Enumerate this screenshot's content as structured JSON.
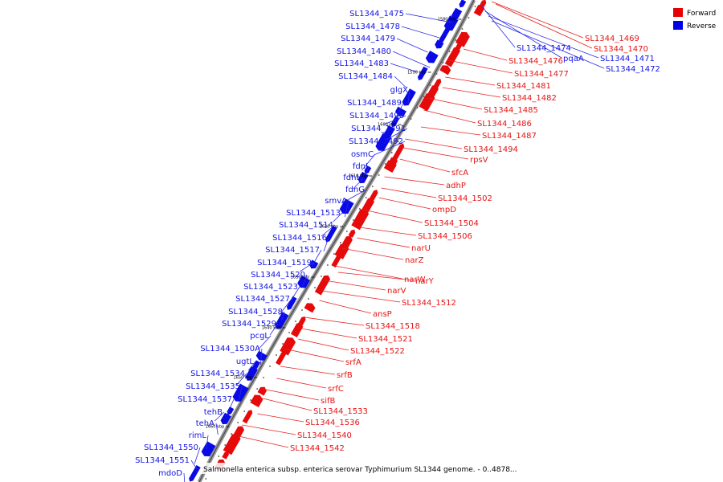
{
  "caption": "Salmonella enterica subsp. enterica serovar Typhimurium SL1344 genome. - 0..4878...",
  "legend": [
    {
      "label": "Forward",
      "color": "#e60000"
    },
    {
      "label": "Reverse",
      "color": "#0000e6"
    }
  ],
  "tick_labels": [
    "1580 kbp",
    "1590 kbp",
    "1600 kbp",
    "1610 kbp",
    "1620 kbp",
    "1630 kbp",
    "1640 kbp",
    "1650 kbp",
    "1660 kbp"
  ],
  "reverse_genes": [
    "SL1344_1475",
    "SL1344_1478",
    "SL1344_1479",
    "SL1344_1480",
    "SL1344_1483",
    "SL1344_1484",
    "glgX",
    "SL1344_1489",
    "SL1344_1490",
    "SL1344_1491",
    "SL1344_1492",
    "osmC",
    "fdnI",
    "fdnH",
    "fdnG",
    "smvA",
    "SL1344_1513",
    "SL1344_1514",
    "SL1344_1516",
    "SL1344_1517",
    "SL1344_1519",
    "SL1344_1520",
    "SL1344_1523",
    "SL1344_1527",
    "SL1344_1528",
    "SL1344_1529",
    "pcgL",
    "SL1344_1530A",
    "ugtL",
    "SL1344_1534",
    "SL1344_1535",
    "SL1344_1537",
    "tehB",
    "tehA",
    "rimL",
    "SL1344_1550",
    "SL1344_1551",
    "mdoD"
  ],
  "reverse_outer": [
    "SL1344_1474",
    "pqaA",
    "SL1344_1471",
    "SL1344_1472"
  ],
  "forward_genes": [
    "SL1344_1469",
    "SL1344_1470",
    "SL1344_1476",
    "SL1344_1477",
    "SL1344_1481",
    "SL1344_1482",
    "SL1344_1485",
    "SL1344_1486",
    "SL1344_1487",
    "SL1344_1494",
    "rpsV",
    "sfcA",
    "adhP",
    "SL1344_1502",
    "ompD",
    "SL1344_1504",
    "SL1344_1506",
    "narU",
    "narZ",
    "narW",
    "narY",
    "narV",
    "SL1344_1512",
    "ansP",
    "SL1344_1518",
    "SL1344_1521",
    "SL1344_1522",
    "srfA",
    "srfB",
    "srfC",
    "sifB",
    "SL1344_1533",
    "SL1344_1536",
    "SL1344_1540",
    "SL1344_1542"
  ]
}
